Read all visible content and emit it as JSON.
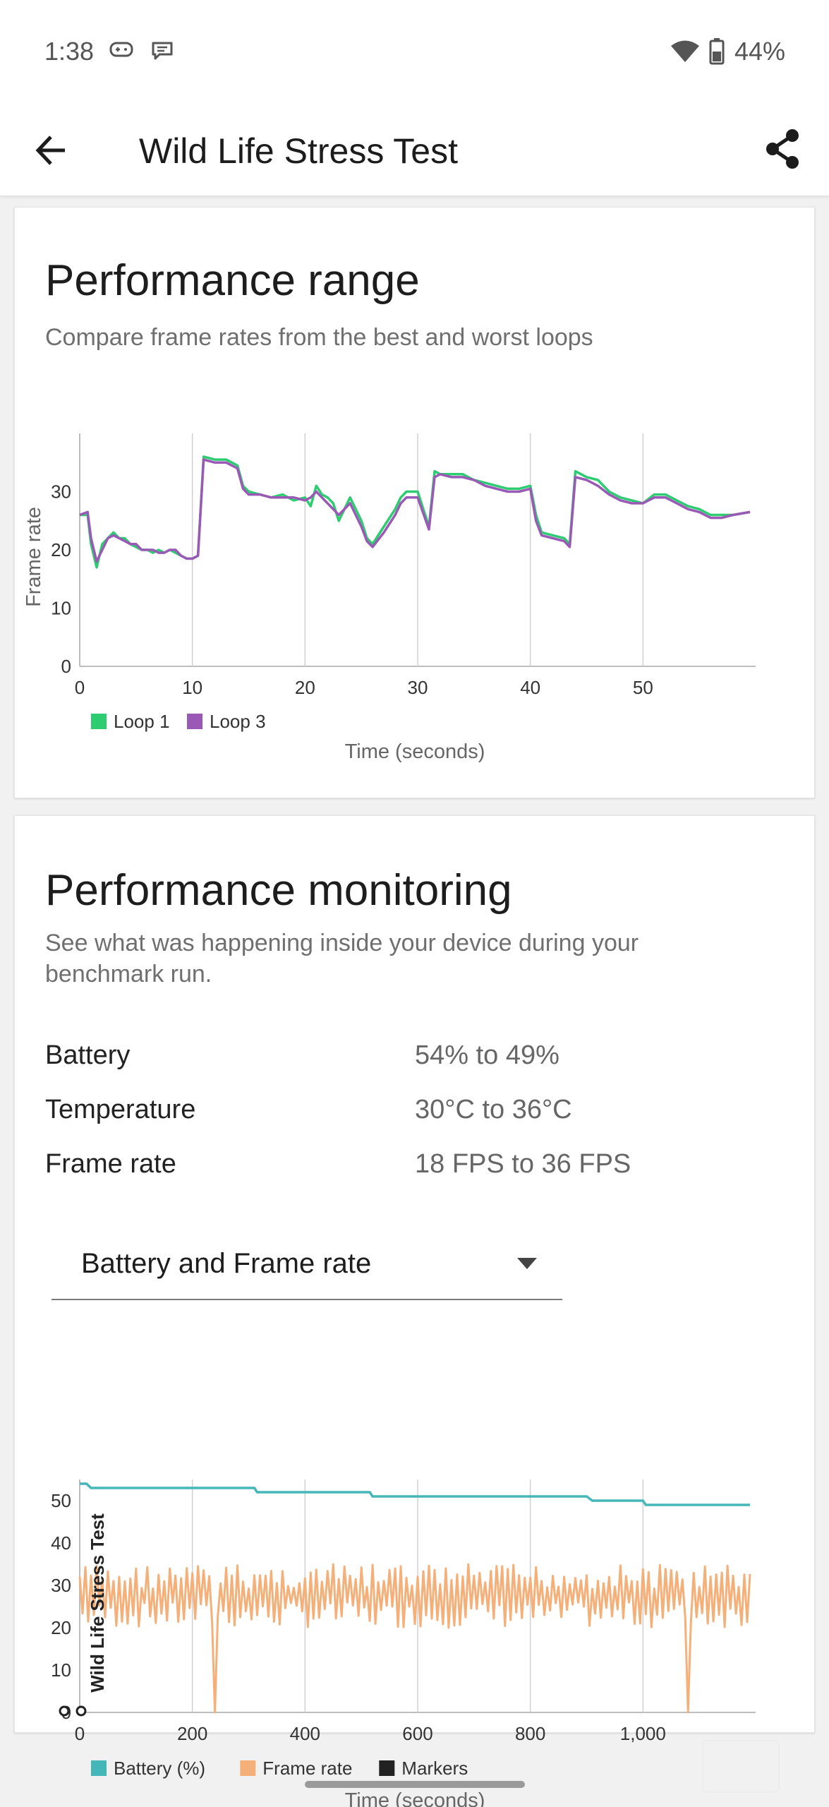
{
  "status_bar": {
    "time": "1:38",
    "battery": "44%",
    "icons": [
      "gamepad-icon",
      "message-icon",
      "wifi-icon",
      "battery-icon"
    ]
  },
  "app_bar": {
    "title": "Wild Life Stress Test",
    "back_icon": "arrow-left-icon",
    "share_icon": "share-icon"
  },
  "performance_range": {
    "title": "Performance range",
    "subtitle": "Compare frame rates from the best and worst loops",
    "chart_data": {
      "type": "line",
      "xlabel": "Time (seconds)",
      "ylabel": "Frame rate",
      "xlim": [
        0,
        60
      ],
      "ylim": [
        0,
        40
      ],
      "xticks": [
        "0",
        "10",
        "20",
        "30",
        "40",
        "50"
      ],
      "yticks": [
        "0",
        "10",
        "20",
        "30"
      ],
      "grid": "vertical",
      "legend": "bottom-left",
      "series": [
        {
          "name": "Loop 1",
          "color": "#2ecc71",
          "x": [
            0,
            0.7,
            1,
            1.5,
            2,
            2.5,
            3,
            3.5,
            4,
            4.5,
            5,
            5.5,
            6,
            6.5,
            7,
            7.5,
            8,
            8.5,
            9,
            9.5,
            10,
            10.5,
            11,
            12,
            13,
            14,
            14.5,
            15,
            16,
            17,
            18,
            19,
            20,
            20.5,
            21,
            21.5,
            22,
            22.5,
            23,
            24,
            25,
            25.5,
            26,
            27,
            28,
            28.5,
            29,
            30,
            31,
            31.5,
            32,
            33,
            34,
            35,
            36,
            37,
            38,
            39,
            40,
            40.5,
            41,
            42,
            43,
            43.5,
            44,
            45,
            46,
            47,
            48,
            49,
            50,
            51,
            52,
            53,
            54,
            55,
            56,
            57,
            58,
            59.5
          ],
          "y": [
            26,
            26,
            21,
            17,
            21,
            22,
            23,
            22,
            22,
            21,
            20.5,
            20,
            20,
            19.5,
            20,
            19.5,
            20,
            19.5,
            19,
            18.5,
            18.5,
            19,
            36,
            35.5,
            35.5,
            34.5,
            31,
            30,
            29.5,
            29,
            29.5,
            28.5,
            29,
            27.5,
            31,
            29.5,
            29,
            28,
            25,
            29,
            25,
            22,
            21,
            24,
            27,
            29,
            30,
            30,
            24,
            33.5,
            33,
            33,
            33,
            32,
            31.5,
            31,
            30.5,
            30.5,
            31,
            26,
            23,
            22.5,
            22,
            21,
            33.5,
            32.5,
            32,
            30,
            29,
            28.5,
            28,
            29.5,
            29.5,
            28.5,
            27.5,
            27,
            26,
            26,
            26,
            26.5
          ]
        },
        {
          "name": "Loop 3",
          "color": "#9b59b6",
          "x": [
            0,
            0.7,
            1,
            1.5,
            2,
            2.5,
            3,
            3.5,
            4,
            4.5,
            5,
            5.5,
            6,
            6.5,
            7,
            7.5,
            8,
            8.5,
            9,
            9.5,
            10,
            10.5,
            11,
            12,
            13,
            14,
            14.5,
            15,
            16,
            17,
            18,
            19,
            20,
            20.5,
            21,
            21.5,
            22,
            22.5,
            23,
            24,
            25,
            25.5,
            26,
            27,
            28,
            28.5,
            29,
            30,
            31,
            31.5,
            32,
            33,
            34,
            35,
            36,
            37,
            38,
            39,
            40,
            40.5,
            41,
            42,
            43,
            43.5,
            44,
            45,
            46,
            47,
            48,
            49,
            50,
            51,
            52,
            53,
            54,
            55,
            56,
            57,
            58,
            59.5
          ],
          "y": [
            26,
            26.5,
            22,
            18,
            20,
            22,
            22.5,
            22,
            21.5,
            21,
            21,
            20,
            20,
            20,
            19.5,
            19.5,
            20,
            20,
            19,
            18.5,
            18.5,
            19,
            35.5,
            35,
            35,
            34,
            30.5,
            29.5,
            29.5,
            29,
            29,
            29,
            28.5,
            29,
            30,
            29,
            28,
            27,
            26,
            28,
            24,
            21.5,
            20.5,
            23,
            26,
            28,
            29,
            29,
            23.5,
            32.5,
            33,
            32.5,
            32.5,
            32,
            31,
            30.5,
            30,
            30,
            30.5,
            25,
            22.5,
            22,
            21.5,
            20.5,
            32.5,
            32,
            31,
            29.5,
            28.5,
            28,
            28,
            29,
            29,
            28,
            27,
            26.5,
            25.5,
            25.5,
            26,
            26.5
          ]
        }
      ]
    }
  },
  "performance_monitoring": {
    "title": "Performance monitoring",
    "subtitle": "See what was happening inside your device during your benchmark run.",
    "stats": [
      {
        "label": "Battery",
        "value": "54% to 49%"
      },
      {
        "label": "Temperature",
        "value": "30°C to 36°C"
      },
      {
        "label": "Frame rate",
        "value": "18 FPS to 36 FPS"
      }
    ],
    "dropdown": {
      "value": "Battery and Frame rate",
      "icon": "caret-down-icon"
    },
    "chart_data": {
      "type": "line",
      "xlabel": "Time (seconds)",
      "marker_label": "Wild Life Stress Test",
      "xlim": [
        0,
        1200
      ],
      "ylim": [
        0,
        55
      ],
      "xticks": [
        "0",
        "200",
        "400",
        "600",
        "800",
        "1,000"
      ],
      "xtick_values": [
        0,
        200,
        400,
        600,
        800,
        1000
      ],
      "yticks": [
        "0",
        "10",
        "20",
        "30",
        "40",
        "50"
      ],
      "grid": "vertical",
      "legend": "bottom-left",
      "series": [
        {
          "name": "Battery (%)",
          "color": "#45b7b8",
          "x": [
            0,
            12,
            20,
            310,
            315,
            515,
            520,
            900,
            910,
            1000,
            1005,
            1190
          ],
          "y": [
            54,
            54,
            53,
            53,
            52,
            52,
            51,
            51,
            50,
            50,
            49,
            49
          ]
        },
        {
          "name": "Frame rate",
          "color": "#f5b07a",
          "pattern": "oscillating between about 20 and 35 FPS with dips to 0 at about 240 s and 1080 s",
          "dips_to_zero_at": [
            240,
            1080
          ],
          "range": [
            20,
            35
          ]
        },
        {
          "name": "Markers",
          "color": "#222222",
          "x": [
            0
          ]
        }
      ]
    }
  }
}
